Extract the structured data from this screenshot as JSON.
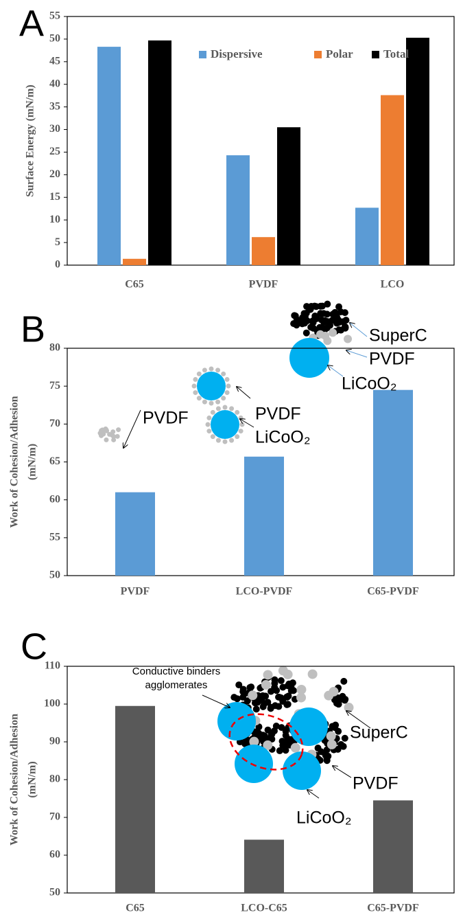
{
  "chart_data": [
    {
      "type": "bar",
      "panel_label": "A",
      "ylabel": [
        "Surface Energy (mN/m)"
      ],
      "categories": [
        "C65",
        "PVDF",
        "LCO"
      ],
      "series": [
        {
          "name": "Dispersive",
          "color": "#5b9bd5",
          "values": [
            48.3,
            24.3,
            12.7
          ]
        },
        {
          "name": "Polar",
          "color": "#ed7d31",
          "values": [
            1.4,
            6.2,
            37.6
          ]
        },
        {
          "name": "Total",
          "color": "#000000",
          "values": [
            49.7,
            30.5,
            50.3
          ]
        }
      ],
      "ylim": [
        0,
        55
      ],
      "yticks": [
        0,
        5,
        10,
        15,
        20,
        25,
        30,
        35,
        40,
        45,
        50,
        55
      ],
      "legend": "top"
    },
    {
      "type": "bar",
      "panel_label": "B",
      "ylabel": [
        "Work of Cohesion/Adhesion",
        "(mN/m)"
      ],
      "categories": [
        "PVDF",
        "LCO-PVDF",
        "C65-PVDF"
      ],
      "series": [
        {
          "color": "#5b9bd5",
          "values": [
            61.0,
            65.7,
            74.5
          ]
        }
      ],
      "ylim": [
        50,
        80
      ],
      "yticks": [
        50,
        55,
        60,
        65,
        70,
        75,
        80
      ],
      "annotations": [
        [
          "PVDF"
        ],
        [
          "PVDF"
        ],
        [
          "LiCoO₂"
        ],
        [
          "SuperC"
        ],
        [
          "PVDF"
        ],
        [
          "LiCoO₂"
        ]
      ]
    },
    {
      "type": "bar",
      "panel_label": "C",
      "ylabel": [
        "Work of Cohesion/Adhesion",
        "(mN/m)"
      ],
      "categories": [
        "C65",
        "LCO-C65",
        "C65-PVDF"
      ],
      "series": [
        {
          "color": "#595959",
          "values": [
            99.5,
            64.1,
            74.5
          ]
        }
      ],
      "ylim": [
        50,
        110
      ],
      "yticks": [
        50,
        60,
        70,
        80,
        90,
        100,
        110
      ],
      "annotations": [
        [
          "Conductive binders",
          "agglomerates"
        ],
        [
          "SuperC"
        ],
        [
          "PVDF"
        ],
        [
          "LiCoO₂"
        ]
      ]
    }
  ]
}
